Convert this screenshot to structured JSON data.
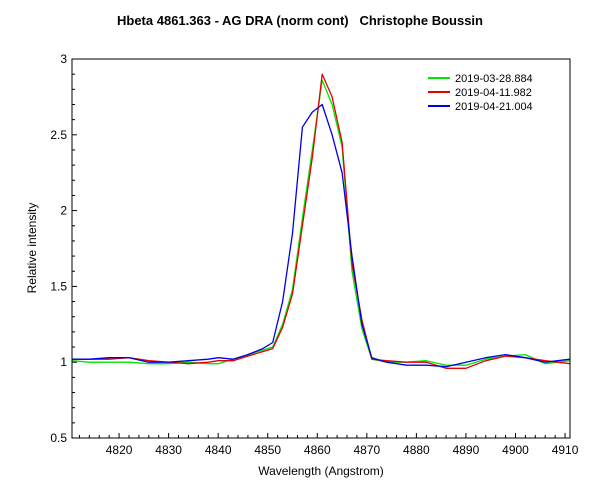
{
  "chart_data": {
    "type": "line",
    "title": "Hbeta 4861.363 - AG DRA (norm cont)   Christophe Boussin",
    "xlabel": "Wavelength (Angstrom)",
    "ylabel": "Relative intensity",
    "xlim": [
      4810.5,
      4911
    ],
    "ylim": [
      0.5,
      3
    ],
    "xticks": [
      4820,
      4830,
      4840,
      4850,
      4860,
      4870,
      4880,
      4890,
      4900,
      4910
    ],
    "yticks": [
      0.5,
      1,
      1.5,
      2,
      2.5,
      3
    ],
    "xtick_labels": [
      "4820",
      "4830",
      "4840",
      "4850",
      "4860",
      "4870",
      "4880",
      "4890",
      "4900",
      "4910"
    ],
    "ytick_labels": [
      "0.5",
      "1",
      "1.5",
      "2",
      "2.5",
      "3"
    ],
    "grid": false,
    "legend_position": "top-right",
    "series": [
      {
        "name": "2019-03-28.884",
        "color": "#00e600",
        "x": [
          4810.5,
          4814,
          4818,
          4822,
          4826,
          4830,
          4834,
          4838,
          4840,
          4843,
          4846,
          4849,
          4851,
          4853,
          4855,
          4857,
          4859,
          4861,
          4863,
          4865,
          4867,
          4869,
          4871,
          4874,
          4878,
          4882,
          4886,
          4890,
          4894,
          4898,
          4902,
          4906,
          4911
        ],
        "y": [
          1.01,
          1.0,
          1.0,
          1.0,
          0.99,
          0.99,
          1.0,
          0.99,
          0.99,
          1.02,
          1.05,
          1.08,
          1.1,
          1.25,
          1.48,
          1.95,
          2.4,
          2.86,
          2.7,
          2.42,
          1.6,
          1.22,
          1.02,
          1.0,
          1.0,
          1.01,
          0.98,
          0.98,
          1.02,
          1.04,
          1.05,
          0.99,
          1.01
        ]
      },
      {
        "name": "2019-04-11.982",
        "color": "#e60000",
        "x": [
          4810.5,
          4814,
          4818,
          4822,
          4826,
          4830,
          4834,
          4838,
          4840,
          4843,
          4846,
          4849,
          4851,
          4853,
          4855,
          4857,
          4859,
          4861,
          4863,
          4865,
          4867,
          4869,
          4871,
          4874,
          4878,
          4882,
          4886,
          4890,
          4894,
          4898,
          4902,
          4906,
          4911
        ],
        "y": [
          1.02,
          1.02,
          1.02,
          1.03,
          1.01,
          1.0,
          0.99,
          1.0,
          1.01,
          1.01,
          1.04,
          1.07,
          1.09,
          1.23,
          1.45,
          1.9,
          2.35,
          2.9,
          2.75,
          2.45,
          1.65,
          1.28,
          1.02,
          1.01,
          1.0,
          1.0,
          0.96,
          0.96,
          1.01,
          1.04,
          1.03,
          1.01,
          0.99
        ]
      },
      {
        "name": "2019-04-21.004",
        "color": "#0000e6",
        "x": [
          4810.5,
          4814,
          4818,
          4822,
          4826,
          4830,
          4834,
          4838,
          4840,
          4843,
          4846,
          4849,
          4851,
          4853,
          4855,
          4857,
          4859,
          4861,
          4863,
          4865,
          4867,
          4869,
          4871,
          4874,
          4878,
          4882,
          4886,
          4890,
          4894,
          4898,
          4902,
          4906,
          4911
        ],
        "y": [
          1.02,
          1.02,
          1.03,
          1.03,
          1.0,
          1.0,
          1.01,
          1.02,
          1.03,
          1.02,
          1.05,
          1.09,
          1.13,
          1.4,
          1.85,
          2.55,
          2.65,
          2.7,
          2.5,
          2.25,
          1.7,
          1.25,
          1.03,
          1.0,
          0.98,
          0.98,
          0.97,
          1.0,
          1.03,
          1.05,
          1.03,
          1.0,
          1.02
        ]
      }
    ]
  }
}
